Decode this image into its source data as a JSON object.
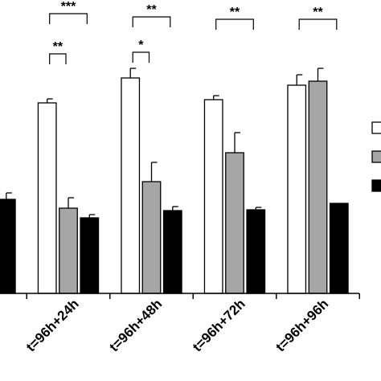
{
  "chart_data": {
    "type": "bar",
    "categories": [
      null,
      "t=96h+24h",
      "t=96h+48h",
      "t=96h+72h",
      "t=96h+96h"
    ],
    "series": [
      {
        "color": "#ffffff",
        "values": [
          null,
          237,
          268,
          241,
          259
        ],
        "errors": [
          null,
          5,
          12,
          5,
          13
        ]
      },
      {
        "color": "#a6a6a6",
        "values": [
          null,
          106,
          139,
          175,
          264
        ],
        "errors": [
          null,
          13,
          24,
          25,
          16
        ]
      },
      {
        "color": "#000000",
        "values": [
          117,
          94,
          103,
          104,
          112
        ],
        "errors": [
          8,
          4,
          5,
          3,
          null
        ]
      }
    ],
    "ylim": [
      0,
      365
    ],
    "annotations": [
      "***",
      "**",
      "**",
      "*",
      "**",
      "**"
    ]
  }
}
